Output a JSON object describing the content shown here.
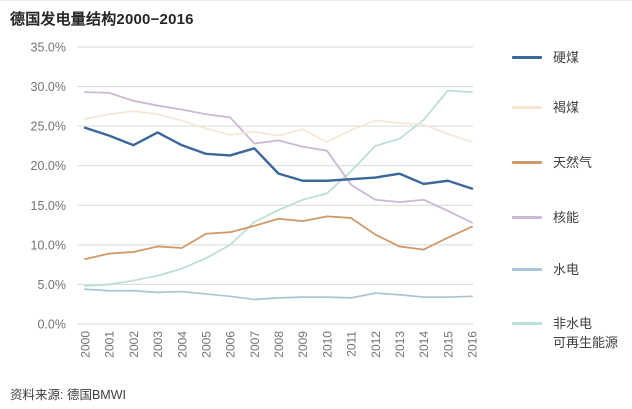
{
  "page": {
    "title": "德国发电量结构2000−2016",
    "source_note": "资料来源: 德国BMWI"
  },
  "chart_data": {
    "type": "line",
    "title": "德国发电量结构2000−2016",
    "xlabel": "",
    "ylabel": "",
    "x": [
      "2000",
      "2001",
      "2002",
      "2003",
      "2004",
      "2005",
      "2006",
      "2007",
      "2008",
      "2009",
      "2010",
      "2011",
      "2012",
      "2013",
      "2014",
      "2015",
      "2016"
    ],
    "ylim": [
      0,
      35
    ],
    "ytick_step": 5,
    "ytick_suffix": "%",
    "grid": true,
    "legend_position": "right",
    "series": [
      {
        "key": "hard-coal",
        "name": "硬煤",
        "color": "#3a689a",
        "width": 2.4,
        "values": [
          24.8,
          23.8,
          22.6,
          24.2,
          22.6,
          21.5,
          21.3,
          22.2,
          19.0,
          18.1,
          18.1,
          18.3,
          18.5,
          19.0,
          17.7,
          18.1,
          17.1
        ]
      },
      {
        "key": "lignite",
        "name": "褐煤",
        "color": "#f6e7d5",
        "width": 1.7,
        "values": [
          25.9,
          26.5,
          26.9,
          26.5,
          25.7,
          24.7,
          23.9,
          24.3,
          23.8,
          24.6,
          23.0,
          24.5,
          25.7,
          25.4,
          25.2,
          24.0,
          23.0
        ]
      },
      {
        "key": "natural-gas",
        "name": "天然气",
        "color": "#d0996a",
        "width": 1.8,
        "values": [
          8.2,
          8.9,
          9.1,
          9.8,
          9.6,
          11.4,
          11.6,
          12.4,
          13.3,
          13.0,
          13.6,
          13.4,
          11.3,
          9.8,
          9.4,
          10.9,
          12.3
        ]
      },
      {
        "key": "nuclear",
        "name": "核能",
        "color": "#ccb8d9",
        "width": 1.8,
        "values": [
          29.3,
          29.2,
          28.2,
          27.6,
          27.1,
          26.5,
          26.1,
          22.8,
          23.2,
          22.4,
          21.9,
          17.6,
          15.7,
          15.4,
          15.7,
          14.3,
          12.8
        ]
      },
      {
        "key": "hydro",
        "name": "水电",
        "color": "#a9c5d7",
        "width": 1.7,
        "values": [
          4.4,
          4.2,
          4.2,
          4.0,
          4.1,
          3.8,
          3.5,
          3.1,
          3.3,
          3.4,
          3.4,
          3.3,
          3.9,
          3.7,
          3.4,
          3.4,
          3.5
        ]
      },
      {
        "key": "non-hydro-renewables",
        "name": "非水电\n可再生能源",
        "color": "#bee0d4",
        "width": 1.8,
        "values": [
          4.8,
          5.0,
          5.5,
          6.1,
          7.0,
          8.3,
          10.0,
          12.9,
          14.4,
          15.7,
          16.5,
          19.3,
          22.5,
          23.4,
          25.8,
          29.5,
          29.3
        ]
      }
    ]
  }
}
